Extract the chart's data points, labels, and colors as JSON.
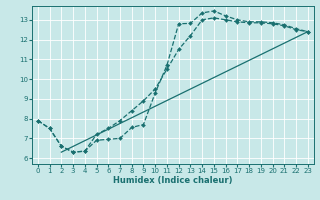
{
  "xlabel": "Humidex (Indice chaleur)",
  "bg_color": "#c8e8e8",
  "grid_color": "#ffffff",
  "line_color": "#1a7070",
  "xlim": [
    -0.5,
    23.5
  ],
  "ylim": [
    5.7,
    13.7
  ],
  "xticks": [
    0,
    1,
    2,
    3,
    4,
    5,
    6,
    7,
    8,
    9,
    10,
    11,
    12,
    13,
    14,
    15,
    16,
    17,
    18,
    19,
    20,
    21,
    22,
    23
  ],
  "yticks": [
    6,
    7,
    8,
    9,
    10,
    11,
    12,
    13
  ],
  "line1_x": [
    0,
    1,
    2,
    3,
    4,
    5,
    6,
    7,
    8,
    9,
    10,
    11,
    12,
    13,
    14,
    15,
    16,
    17,
    18,
    19,
    20,
    21,
    22,
    23
  ],
  "line1_y": [
    7.9,
    7.5,
    6.6,
    6.3,
    6.35,
    6.9,
    6.95,
    7.0,
    7.55,
    7.7,
    9.3,
    10.7,
    12.8,
    12.82,
    13.35,
    13.45,
    13.2,
    13.0,
    12.9,
    12.9,
    12.85,
    12.75,
    12.55,
    12.4
  ],
  "line2_x": [
    0,
    1,
    2,
    3,
    4,
    5,
    6,
    7,
    8,
    9,
    10,
    11,
    12,
    13,
    14,
    15,
    16,
    17,
    18,
    19,
    20,
    21,
    22,
    23
  ],
  "line2_y": [
    7.9,
    7.5,
    6.6,
    6.3,
    6.35,
    7.2,
    7.5,
    7.9,
    8.4,
    8.9,
    9.5,
    10.5,
    11.5,
    12.2,
    13.0,
    13.1,
    13.0,
    12.9,
    12.85,
    12.85,
    12.8,
    12.7,
    12.5,
    12.4
  ],
  "line3_x": [
    2,
    23
  ],
  "line3_y": [
    6.3,
    12.4
  ]
}
